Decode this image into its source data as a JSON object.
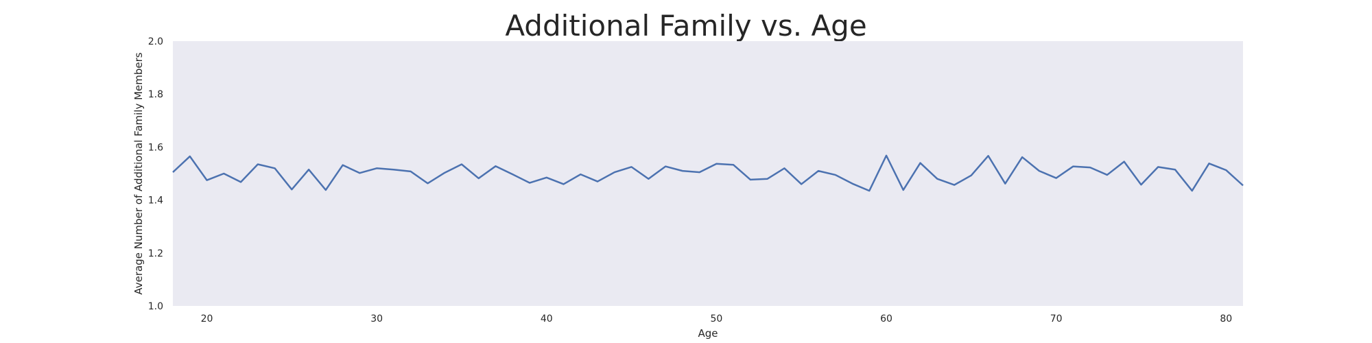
{
  "chart_data": {
    "type": "line",
    "title": "Additional Family vs. Age",
    "xlabel": "Age",
    "ylabel": "Average Number of Additional Family Members",
    "xlim": [
      18,
      81
    ],
    "ylim": [
      1.0,
      2.0
    ],
    "xticks": [
      "20",
      "30",
      "40",
      "50",
      "60",
      "70",
      "80"
    ],
    "yticks": [
      "1.0",
      "1.2",
      "1.4",
      "1.6",
      "1.8",
      "2.0"
    ],
    "grid": false,
    "series": [
      {
        "x": [
          18,
          19,
          20,
          21,
          22,
          23,
          24,
          25,
          26,
          27,
          28,
          29,
          30,
          31,
          32,
          33,
          34,
          35,
          36,
          37,
          38,
          39,
          40,
          41,
          42,
          43,
          44,
          45,
          46,
          47,
          48,
          49,
          50,
          51,
          52,
          53,
          54,
          55,
          56,
          57,
          58,
          59,
          60,
          61,
          62,
          63,
          64,
          65,
          66,
          67,
          68,
          69,
          70,
          71,
          72,
          73,
          74,
          75,
          76,
          77,
          78,
          79,
          80,
          81
        ],
        "y": [
          1.505,
          1.565,
          1.475,
          1.5,
          1.468,
          1.535,
          1.52,
          1.44,
          1.515,
          1.438,
          1.532,
          1.502,
          1.52,
          1.515,
          1.508,
          1.463,
          1.503,
          1.535,
          1.482,
          1.528,
          1.497,
          1.465,
          1.485,
          1.46,
          1.497,
          1.47,
          1.505,
          1.525,
          1.48,
          1.527,
          1.51,
          1.505,
          1.537,
          1.533,
          1.477,
          1.48,
          1.52,
          1.46,
          1.51,
          1.495,
          1.462,
          1.435,
          1.568,
          1.438,
          1.54,
          1.48,
          1.457,
          1.493,
          1.567,
          1.462,
          1.562,
          1.51,
          1.483,
          1.527,
          1.523,
          1.495,
          1.545,
          1.458,
          1.525,
          1.515,
          1.435,
          1.538,
          1.513,
          1.455
        ]
      }
    ]
  },
  "colors": {
    "plot_background": "#eaeaf2",
    "line": "#4c72b0",
    "text": "#262626"
  }
}
